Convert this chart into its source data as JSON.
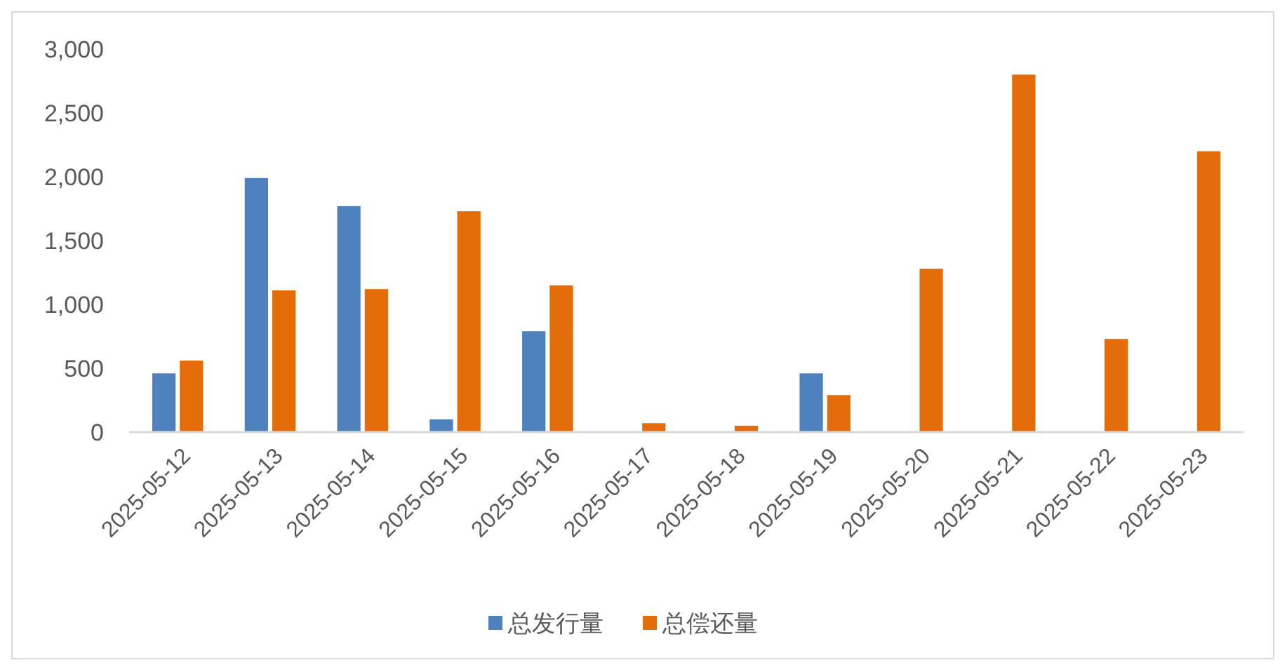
{
  "chart_data": {
    "type": "bar",
    "categories": [
      "2025-05-12",
      "2025-05-13",
      "2025-05-14",
      "2025-05-15",
      "2025-05-16",
      "2025-05-17",
      "2025-05-18",
      "2025-05-19",
      "2025-05-20",
      "2025-05-21",
      "2025-05-22",
      "2025-05-23"
    ],
    "series": [
      {
        "name": "总发行量",
        "color": "#4f81bd",
        "values": [
          460,
          1990,
          1770,
          100,
          790,
          null,
          null,
          460,
          null,
          null,
          null,
          null
        ]
      },
      {
        "name": "总偿还量",
        "color": "#e46c0a",
        "values": [
          560,
          1110,
          1120,
          1730,
          1150,
          70,
          50,
          290,
          1280,
          2800,
          730,
          2200
        ]
      }
    ],
    "ylim": [
      0,
      3000
    ],
    "yticks": [
      0,
      {
        "value": 500,
        "label": "500"
      },
      {
        "value": 1000,
        "label": "1,000"
      },
      {
        "value": 1500,
        "label": "1,500"
      },
      {
        "value": 2000,
        "label": "2,000"
      },
      {
        "value": 2500,
        "label": "2,500"
      },
      {
        "value": 3000,
        "label": "3,000"
      }
    ],
    "legend": "bottom"
  }
}
